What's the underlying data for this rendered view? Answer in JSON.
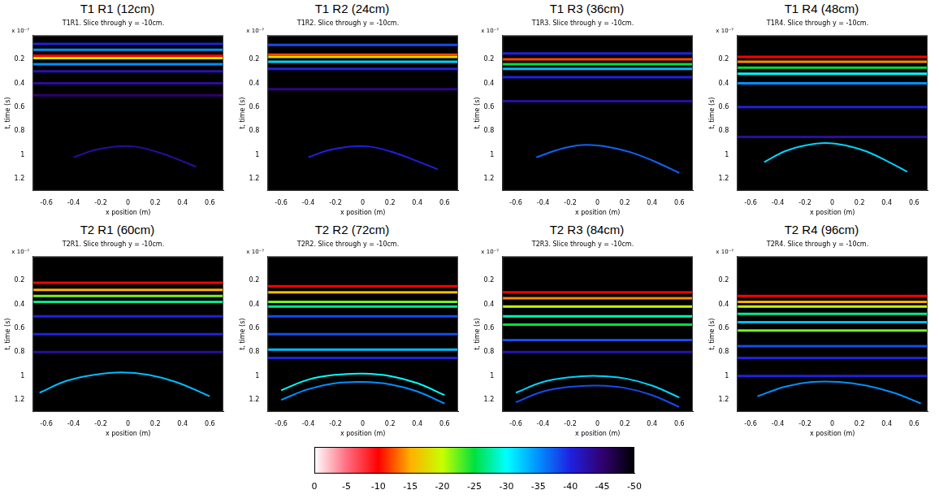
{
  "chart_data": [
    {
      "type": "heatmap",
      "title": "T1 R1 (12cm)",
      "subtitle": "T1R1. Slice through y = -10cm.",
      "x_label": "x position (m)",
      "y_label": "t, time (s)",
      "annotation": "x 10⁻⁷",
      "xlim": [
        -0.7,
        0.7
      ],
      "xticks": [
        -0.6,
        -0.4,
        -0.2,
        0,
        0.2,
        0.4,
        0.6
      ],
      "ylim": [
        0,
        1.3
      ],
      "yticks": [
        0.2,
        0.4,
        0.6,
        0.8,
        1,
        1.2
      ],
      "reflections": [
        {
          "x": [
            -0.7,
            0.7
          ],
          "t": [
            0.07,
            0.07
          ],
          "level": -40
        },
        {
          "x": [
            -0.7,
            0.7
          ],
          "t": [
            0.12,
            0.12
          ],
          "level": -35
        },
        {
          "x": [
            -0.7,
            0.7
          ],
          "t": [
            0.17,
            0.17
          ],
          "level": -10
        },
        {
          "x": [
            -0.7,
            0.7
          ],
          "t": [
            0.19,
            0.19
          ],
          "level": -20
        },
        {
          "x": [
            -0.7,
            0.7
          ],
          "t": [
            0.24,
            0.24
          ],
          "level": -35
        },
        {
          "x": [
            -0.7,
            0.7
          ],
          "t": [
            0.3,
            0.3
          ],
          "level": -42
        },
        {
          "x": [
            -0.7,
            0.7
          ],
          "t": [
            0.4,
            0.4
          ],
          "level": -43
        },
        {
          "x": [
            -0.7,
            0.7
          ],
          "t": [
            0.5,
            0.5
          ],
          "level": -45
        },
        {
          "x": [
            -0.4,
            -0.25,
            -0.1,
            0.05,
            0.2,
            0.35,
            0.5
          ],
          "t": [
            1.02,
            0.96,
            0.93,
            0.93,
            0.97,
            1.03,
            1.1
          ],
          "level": -43
        }
      ]
    },
    {
      "type": "heatmap",
      "title": "T1 R2 (24cm)",
      "subtitle": "T1R2. Slice through y = -10cm.",
      "x_label": "x position (m)",
      "y_label": "t, time (s)",
      "annotation": "x 10⁻⁷",
      "xlim": [
        -0.7,
        0.7
      ],
      "xticks": [
        -0.6,
        -0.4,
        -0.2,
        0,
        0.2,
        0.4,
        0.6
      ],
      "ylim": [
        0,
        1.3
      ],
      "yticks": [
        0.2,
        0.4,
        0.6,
        0.8,
        1,
        1.2
      ],
      "reflections": [
        {
          "x": [
            -0.7,
            0.7
          ],
          "t": [
            0.08,
            0.08
          ],
          "level": -38
        },
        {
          "x": [
            -0.7,
            0.7
          ],
          "t": [
            0.16,
            0.16
          ],
          "level": -12
        },
        {
          "x": [
            -0.7,
            0.7
          ],
          "t": [
            0.18,
            0.18
          ],
          "level": -18
        },
        {
          "x": [
            -0.7,
            0.7
          ],
          "t": [
            0.22,
            0.22
          ],
          "level": -32
        },
        {
          "x": [
            -0.7,
            0.7
          ],
          "t": [
            0.28,
            0.28
          ],
          "level": -40
        },
        {
          "x": [
            -0.7,
            0.7
          ],
          "t": [
            0.45,
            0.45
          ],
          "level": -44
        },
        {
          "x": [
            -0.4,
            -0.25,
            -0.1,
            0.05,
            0.2,
            0.35,
            0.55
          ],
          "t": [
            1.02,
            0.96,
            0.93,
            0.93,
            0.97,
            1.03,
            1.12
          ],
          "level": -40
        }
      ]
    },
    {
      "type": "heatmap",
      "title": "T1 R3 (36cm)",
      "subtitle": "T1R3. Slice through y = -10cm.",
      "x_label": "x position (m)",
      "y_label": "t, time (s)",
      "annotation": "x 10⁻⁷",
      "xlim": [
        -0.7,
        0.7
      ],
      "xticks": [
        -0.6,
        -0.4,
        -0.2,
        0,
        0.2,
        0.4,
        0.6
      ],
      "ylim": [
        0,
        1.3
      ],
      "yticks": [
        0.2,
        0.4,
        0.6,
        0.8,
        1,
        1.2
      ],
      "reflections": [
        {
          "x": [
            -0.7,
            0.7
          ],
          "t": [
            0.15,
            0.15
          ],
          "level": -40
        },
        {
          "x": [
            -0.7,
            0.7
          ],
          "t": [
            0.2,
            0.2
          ],
          "level": -12
        },
        {
          "x": [
            -0.7,
            0.7
          ],
          "t": [
            0.24,
            0.24
          ],
          "level": -25
        },
        {
          "x": [
            -0.7,
            0.7
          ],
          "t": [
            0.28,
            0.28
          ],
          "level": -33
        },
        {
          "x": [
            -0.7,
            0.7
          ],
          "t": [
            0.35,
            0.35
          ],
          "level": -40
        },
        {
          "x": [
            -0.7,
            0.7
          ],
          "t": [
            0.55,
            0.55
          ],
          "level": -43
        },
        {
          "x": [
            -0.45,
            -0.3,
            -0.15,
            0,
            0.15,
            0.3,
            0.45,
            0.6
          ],
          "t": [
            1.02,
            0.96,
            0.92,
            0.92,
            0.95,
            1.0,
            1.07,
            1.15
          ],
          "level": -37
        }
      ]
    },
    {
      "type": "heatmap",
      "title": "T1 R4 (48cm)",
      "subtitle": "T1R4. Slice through y = -10cm.",
      "x_label": "x position (m)",
      "y_label": "t, time (s)",
      "annotation": "x 10⁻⁷",
      "xlim": [
        -0.7,
        0.7
      ],
      "xticks": [
        -0.6,
        -0.4,
        -0.2,
        0,
        0.2,
        0.4,
        0.6
      ],
      "ylim": [
        0,
        1.3
      ],
      "yticks": [
        0.2,
        0.4,
        0.6,
        0.8,
        1,
        1.2
      ],
      "reflections": [
        {
          "x": [
            -0.7,
            0.7
          ],
          "t": [
            0.18,
            0.18
          ],
          "level": -10
        },
        {
          "x": [
            -0.7,
            0.7
          ],
          "t": [
            0.22,
            0.22
          ],
          "level": -14
        },
        {
          "x": [
            -0.7,
            0.7
          ],
          "t": [
            0.27,
            0.27
          ],
          "level": -25
        },
        {
          "x": [
            -0.7,
            0.7
          ],
          "t": [
            0.32,
            0.32
          ],
          "level": -30
        },
        {
          "x": [
            -0.7,
            0.7
          ],
          "t": [
            0.4,
            0.4
          ],
          "level": -35
        },
        {
          "x": [
            -0.7,
            0.7
          ],
          "t": [
            0.6,
            0.6
          ],
          "level": -40
        },
        {
          "x": [
            -0.7,
            0.7
          ],
          "t": [
            0.85,
            0.85
          ],
          "level": -43
        },
        {
          "x": [
            -0.5,
            -0.35,
            -0.2,
            -0.05,
            0.1,
            0.25,
            0.4,
            0.55
          ],
          "t": [
            1.06,
            0.97,
            0.92,
            0.9,
            0.92,
            0.97,
            1.05,
            1.14
          ],
          "level": -32
        }
      ]
    },
    {
      "type": "heatmap",
      "title": "T2 R1 (60cm)",
      "subtitle": "T2R1. Slice through y = -10cm.",
      "x_label": "x position (m)",
      "y_label": "t, time (s)",
      "annotation": "x 10⁻⁷",
      "xlim": [
        -0.7,
        0.7
      ],
      "xticks": [
        -0.6,
        -0.4,
        -0.2,
        0,
        0.2,
        0.4,
        0.6
      ],
      "ylim": [
        0,
        1.3
      ],
      "yticks": [
        0.2,
        0.4,
        0.6,
        0.8,
        1,
        1.2
      ],
      "reflections": [
        {
          "x": [
            -0.7,
            0.7
          ],
          "t": [
            0.22,
            0.22
          ],
          "level": -10
        },
        {
          "x": [
            -0.7,
            0.7
          ],
          "t": [
            0.28,
            0.28
          ],
          "level": -15
        },
        {
          "x": [
            -0.7,
            0.7
          ],
          "t": [
            0.33,
            0.33
          ],
          "level": -22
        },
        {
          "x": [
            -0.7,
            0.7
          ],
          "t": [
            0.38,
            0.38
          ],
          "level": -27
        },
        {
          "x": [
            -0.7,
            0.7
          ],
          "t": [
            0.5,
            0.5
          ],
          "level": -40
        },
        {
          "x": [
            -0.7,
            0.7
          ],
          "t": [
            0.65,
            0.65
          ],
          "level": -40
        },
        {
          "x": [
            -0.7,
            0.7
          ],
          "t": [
            0.8,
            0.8
          ],
          "level": -43
        },
        {
          "x": [
            -0.65,
            -0.45,
            -0.25,
            -0.05,
            0.15,
            0.35,
            0.6
          ],
          "t": [
            1.14,
            1.04,
            0.99,
            0.97,
            0.99,
            1.05,
            1.17
          ],
          "level": -33
        }
      ]
    },
    {
      "type": "heatmap",
      "title": "T2 R2 (72cm)",
      "subtitle": "T2R2. Slice through y = -10cm.",
      "x_label": "x position (m)",
      "y_label": "t, time (s)",
      "annotation": "x 10⁻⁷",
      "xlim": [
        -0.7,
        0.7
      ],
      "xticks": [
        -0.6,
        -0.4,
        -0.2,
        0,
        0.2,
        0.4,
        0.6
      ],
      "ylim": [
        0,
        1.3
      ],
      "yticks": [
        0.2,
        0.4,
        0.6,
        0.8,
        1,
        1.2
      ],
      "reflections": [
        {
          "x": [
            -0.7,
            0.7
          ],
          "t": [
            0.25,
            0.25
          ],
          "level": -10
        },
        {
          "x": [
            -0.7,
            0.7
          ],
          "t": [
            0.3,
            0.3
          ],
          "level": -16
        },
        {
          "x": [
            -0.7,
            0.7
          ],
          "t": [
            0.38,
            0.38
          ],
          "level": -22
        },
        {
          "x": [
            -0.7,
            0.7
          ],
          "t": [
            0.42,
            0.42
          ],
          "level": -27
        },
        {
          "x": [
            -0.7,
            0.7
          ],
          "t": [
            0.5,
            0.5
          ],
          "level": -38
        },
        {
          "x": [
            -0.7,
            0.7
          ],
          "t": [
            0.65,
            0.65
          ],
          "level": -38
        },
        {
          "x": [
            -0.7,
            0.7
          ],
          "t": [
            0.78,
            0.78
          ],
          "level": -33
        },
        {
          "x": [
            -0.7,
            0.7
          ],
          "t": [
            0.85,
            0.85
          ],
          "level": -40
        },
        {
          "x": [
            -0.6,
            -0.4,
            -0.2,
            0,
            0.2,
            0.4,
            0.6
          ],
          "t": [
            1.12,
            1.03,
            0.99,
            0.98,
            1.0,
            1.06,
            1.16
          ],
          "level": -30
        },
        {
          "x": [
            -0.6,
            -0.4,
            -0.2,
            0,
            0.2,
            0.4,
            0.6
          ],
          "t": [
            1.2,
            1.11,
            1.06,
            1.05,
            1.07,
            1.13,
            1.23
          ],
          "level": -35
        }
      ]
    },
    {
      "type": "heatmap",
      "title": "T2 R3 (84cm)",
      "subtitle": "T2R3. Slice through y = -10cm.",
      "x_label": "x position (m)",
      "y_label": "t, time (s)",
      "annotation": "x 10⁻⁷",
      "xlim": [
        -0.7,
        0.7
      ],
      "xticks": [
        -0.6,
        -0.4,
        -0.2,
        0,
        0.2,
        0.4,
        0.6
      ],
      "ylim": [
        0,
        1.3
      ],
      "yticks": [
        0.2,
        0.4,
        0.6,
        0.8,
        1,
        1.2
      ],
      "reflections": [
        {
          "x": [
            -0.7,
            0.7
          ],
          "t": [
            0.3,
            0.3
          ],
          "level": -10
        },
        {
          "x": [
            -0.7,
            0.7
          ],
          "t": [
            0.35,
            0.35
          ],
          "level": -14
        },
        {
          "x": [
            -0.7,
            0.7
          ],
          "t": [
            0.42,
            0.42
          ],
          "level": -20
        },
        {
          "x": [
            -0.7,
            0.7
          ],
          "t": [
            0.5,
            0.5
          ],
          "level": -28
        },
        {
          "x": [
            -0.7,
            0.7
          ],
          "t": [
            0.57,
            0.57
          ],
          "level": -25
        },
        {
          "x": [
            -0.7,
            0.7
          ],
          "t": [
            0.7,
            0.7
          ],
          "level": -38
        },
        {
          "x": [
            -0.7,
            0.7
          ],
          "t": [
            0.8,
            0.8
          ],
          "level": -42
        },
        {
          "x": [
            -0.6,
            -0.4,
            -0.2,
            0,
            0.2,
            0.4,
            0.6
          ],
          "t": [
            1.14,
            1.05,
            1.01,
            1.0,
            1.02,
            1.08,
            1.18
          ],
          "level": -32
        },
        {
          "x": [
            -0.6,
            -0.4,
            -0.2,
            0,
            0.2,
            0.4,
            0.6
          ],
          "t": [
            1.22,
            1.13,
            1.09,
            1.08,
            1.1,
            1.16,
            1.26
          ],
          "level": -38
        }
      ]
    },
    {
      "type": "heatmap",
      "title": "T2 R4 (96cm)",
      "subtitle": "T2R4. Slice through y = -10cm.",
      "x_label": "x position (m)",
      "y_label": "t, time (s)",
      "annotation": "x 10⁻⁷",
      "xlim": [
        -0.7,
        0.7
      ],
      "xticks": [
        -0.6,
        -0.4,
        -0.2,
        0,
        0.2,
        0.4,
        0.6
      ],
      "ylim": [
        0,
        1.3
      ],
      "yticks": [
        0.2,
        0.4,
        0.6,
        0.8,
        1,
        1.2
      ],
      "reflections": [
        {
          "x": [
            -0.7,
            0.7
          ],
          "t": [
            0.33,
            0.33
          ],
          "level": -10
        },
        {
          "x": [
            -0.7,
            0.7
          ],
          "t": [
            0.38,
            0.38
          ],
          "level": -15
        },
        {
          "x": [
            -0.7,
            0.7
          ],
          "t": [
            0.42,
            0.42
          ],
          "level": -20
        },
        {
          "x": [
            -0.7,
            0.7
          ],
          "t": [
            0.48,
            0.48
          ],
          "level": -27
        },
        {
          "x": [
            -0.7,
            0.7
          ],
          "t": [
            0.55,
            0.55
          ],
          "level": -33
        },
        {
          "x": [
            -0.7,
            0.7
          ],
          "t": [
            0.62,
            0.62
          ],
          "level": -22
        },
        {
          "x": [
            -0.7,
            0.7
          ],
          "t": [
            0.75,
            0.75
          ],
          "level": -38
        },
        {
          "x": [
            -0.7,
            0.7
          ],
          "t": [
            0.85,
            0.85
          ],
          "level": -40
        },
        {
          "x": [
            -0.7,
            0.7
          ],
          "t": [
            1.0,
            1.0
          ],
          "level": -40
        },
        {
          "x": [
            -0.55,
            -0.35,
            -0.15,
            0.05,
            0.25,
            0.45,
            0.65
          ],
          "t": [
            1.17,
            1.09,
            1.05,
            1.05,
            1.08,
            1.14,
            1.23
          ],
          "level": -35
        }
      ]
    },
    {
      "type": "colorbar",
      "xlim": [
        0,
        -50
      ],
      "xticks": [
        0,
        -5,
        -10,
        -15,
        -20,
        -25,
        -30,
        -35,
        -40,
        -45,
        -50
      ]
    }
  ]
}
